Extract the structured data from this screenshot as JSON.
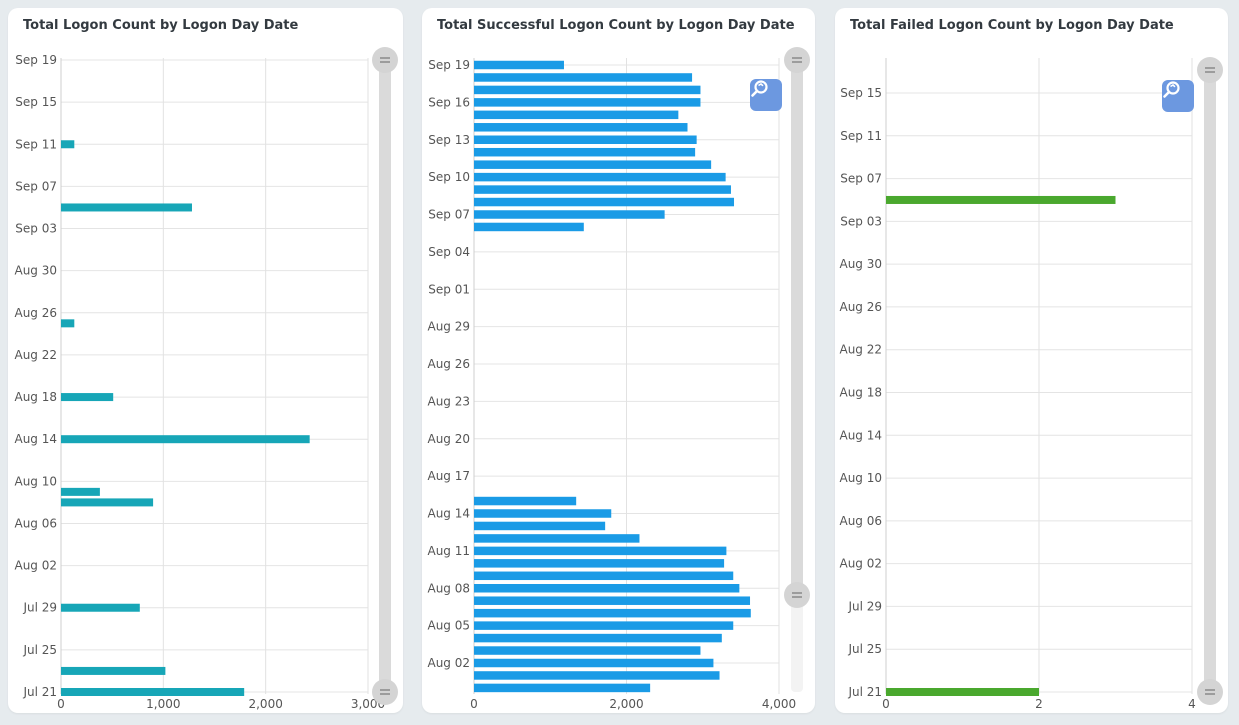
{
  "chart_data": [
    {
      "type": "bar",
      "orientation": "horizontal",
      "title": "Total Logon Count by Logon Day Date",
      "color": "#17a6b7",
      "xlim": [
        0,
        3000
      ],
      "x_ticks": [
        "0",
        "1,000",
        "2,000",
        "3,000"
      ],
      "y_ticks": [
        "Sep 19",
        "Sep 15",
        "Sep 11",
        "Sep 07",
        "Sep 03",
        "Aug 30",
        "Aug 26",
        "Aug 22",
        "Aug 18",
        "Aug 14",
        "Aug 10",
        "Aug 06",
        "Aug 02",
        "Jul 29",
        "Jul 25",
        "Jul 21"
      ],
      "ylim": [
        "Jul 21",
        "Sep 19"
      ],
      "bars": [
        {
          "date": "Jul 21",
          "value": 1790
        },
        {
          "date": "Jul 23",
          "value": 1020
        },
        {
          "date": "Jul 29",
          "value": 770
        },
        {
          "date": "Aug 08",
          "value": 900
        },
        {
          "date": "Aug 09",
          "value": 380
        },
        {
          "date": "Aug 14",
          "value": 2430
        },
        {
          "date": "Aug 18",
          "value": 510
        },
        {
          "date": "Aug 25",
          "value": 130
        },
        {
          "date": "Sep 05",
          "value": 1280
        },
        {
          "date": "Sep 11",
          "value": 130
        }
      ],
      "grid": true
    },
    {
      "type": "bar",
      "orientation": "horizontal",
      "title": "Total Successful Logon Count by Logon Day Date",
      "color": "#1a9be6",
      "xlim": [
        0,
        4000
      ],
      "x_ticks": [
        "0",
        "2,000",
        "4,000"
      ],
      "y_ticks": [
        "Sep 19",
        "Sep 16",
        "Sep 13",
        "Sep 10",
        "Sep 07",
        "Sep 04",
        "Sep 01",
        "Aug 29",
        "Aug 26",
        "Aug 23",
        "Aug 20",
        "Aug 17",
        "Aug 14",
        "Aug 11",
        "Aug 08",
        "Aug 05",
        "Aug 02"
      ],
      "bars": [
        {
          "date": "Jul 31",
          "value": 2310
        },
        {
          "date": "Aug 01",
          "value": 3220
        },
        {
          "date": "Aug 02",
          "value": 3140
        },
        {
          "date": "Aug 03",
          "value": 2970
        },
        {
          "date": "Aug 04",
          "value": 3250
        },
        {
          "date": "Aug 05",
          "value": 3400
        },
        {
          "date": "Aug 06",
          "value": 3630
        },
        {
          "date": "Aug 07",
          "value": 3620
        },
        {
          "date": "Aug 08",
          "value": 3480
        },
        {
          "date": "Aug 09",
          "value": 3400
        },
        {
          "date": "Aug 10",
          "value": 3280
        },
        {
          "date": "Aug 11",
          "value": 3310
        },
        {
          "date": "Aug 12",
          "value": 2170
        },
        {
          "date": "Aug 13",
          "value": 1720
        },
        {
          "date": "Aug 14",
          "value": 1800
        },
        {
          "date": "Aug 15",
          "value": 1340
        },
        {
          "date": "Sep 06",
          "value": 1440
        },
        {
          "date": "Sep 07",
          "value": 2500
        },
        {
          "date": "Sep 08",
          "value": 3410
        },
        {
          "date": "Sep 09",
          "value": 3370
        },
        {
          "date": "Sep 10",
          "value": 3300
        },
        {
          "date": "Sep 11",
          "value": 3110
        },
        {
          "date": "Sep 12",
          "value": 2900
        },
        {
          "date": "Sep 13",
          "value": 2920
        },
        {
          "date": "Sep 14",
          "value": 2800
        },
        {
          "date": "Sep 15",
          "value": 2680
        },
        {
          "date": "Sep 16",
          "value": 2970
        },
        {
          "date": "Sep 17",
          "value": 2970
        },
        {
          "date": "Sep 18",
          "value": 2860
        },
        {
          "date": "Sep 19",
          "value": 1180
        }
      ],
      "grid": true
    },
    {
      "type": "bar",
      "orientation": "horizontal",
      "title": "Total Failed Logon Count by Logon Day Date",
      "color": "#4aa82e",
      "xlim": [
        0,
        4
      ],
      "x_ticks": [
        "0",
        "2",
        "4"
      ],
      "y_ticks": [
        "Sep 15",
        "Sep 11",
        "Sep 07",
        "Sep 03",
        "Aug 30",
        "Aug 26",
        "Aug 22",
        "Aug 18",
        "Aug 14",
        "Aug 10",
        "Aug 06",
        "Aug 02",
        "Jul 29",
        "Jul 25",
        "Jul 21"
      ],
      "bars": [
        {
          "date": "Jul 21",
          "value": 2
        },
        {
          "date": "Sep 05",
          "value": 3
        }
      ],
      "grid": true
    }
  ],
  "icons": {
    "zoom_reset": "zoom-reset-icon",
    "slider_handle": "slider-handle-icon"
  }
}
